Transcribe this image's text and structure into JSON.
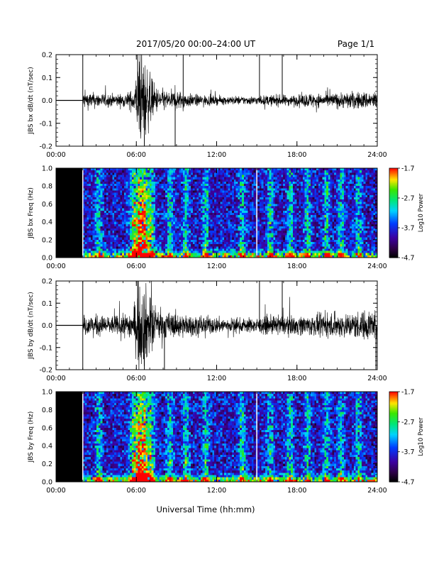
{
  "header": {
    "title": "2017/05/20  00:00–24:00 UT",
    "page": "Page 1/1"
  },
  "xlabel": "Universal Time (hh:mm)",
  "chart_data": [
    {
      "type": "line",
      "ylabel": "JBS bx dB/dt (nT/sec)",
      "xlim": [
        0,
        24
      ],
      "ylim": [
        -0.2,
        0.2
      ],
      "yticks": [
        "0.2",
        "0.1",
        "0.0",
        "-0.1",
        "-0.2"
      ],
      "xticks": [
        "00:00",
        "06:00",
        "12:00",
        "18:00",
        "24:00"
      ],
      "data_start_hour": 2.0,
      "envelope": {
        "x": [
          0,
          1.9,
          2.0,
          3,
          4,
          5,
          5.8,
          6.2,
          6.6,
          7.0,
          7.5,
          8,
          8.5,
          9,
          10,
          11,
          12,
          13,
          14,
          15,
          16,
          17,
          18,
          19,
          20,
          21,
          22,
          23,
          24
        ],
        "amplitude": [
          0.0,
          0.0,
          0.04,
          0.035,
          0.03,
          0.03,
          0.05,
          0.2,
          0.2,
          0.12,
          0.06,
          0.05,
          0.04,
          0.05,
          0.03,
          0.025,
          0.02,
          0.02,
          0.02,
          0.02,
          0.025,
          0.025,
          0.025,
          0.035,
          0.03,
          0.035,
          0.04,
          0.04,
          0.045
        ]
      },
      "spikes": [
        {
          "x": 2.0,
          "y": -0.2
        },
        {
          "x": 2.0,
          "y": 0.2
        },
        {
          "x": 6.1,
          "y": 0.2
        },
        {
          "x": 6.6,
          "y": -0.2
        },
        {
          "x": 8.9,
          "y": -0.2
        },
        {
          "x": 15.2,
          "y": 0.2
        },
        {
          "x": 16.9,
          "y": 0.2
        },
        {
          "x": 9.5,
          "y": 0.2
        }
      ]
    },
    {
      "type": "heatmap",
      "ylabel": "JBS bx Freq (Hz)",
      "xlim": [
        0,
        24
      ],
      "ylim": [
        0,
        1.0
      ],
      "yticks": [
        "1.0",
        "0.8",
        "0.6",
        "0.4",
        "0.2",
        "0.0"
      ],
      "xticks": [
        "00:00",
        "06:00",
        "12:00",
        "18:00",
        "24:00"
      ],
      "data_start_hour": 2.0,
      "gaps_hours": [
        2.0,
        15.0
      ],
      "colorbar": {
        "label": "Log10 Power",
        "ticks": [
          "-1.7",
          "-2.7",
          "-3.7",
          "-4.7"
        ],
        "range": [
          -4.7,
          -1.7
        ]
      },
      "activity_hours": [
        3.2,
        5.8,
        6.2,
        6.6,
        7.1,
        8.5,
        9.7,
        11.2,
        13.9,
        16.0,
        17.5,
        18.8,
        20.2,
        21.3,
        22.6
      ]
    },
    {
      "type": "line",
      "ylabel": "JBS by dB/dt (nT/sec)",
      "xlim": [
        0,
        24
      ],
      "ylim": [
        -0.2,
        0.2
      ],
      "yticks": [
        "0.2",
        "0.1",
        "0.0",
        "-0.1",
        "-0.2"
      ],
      "xticks": [
        "00:00",
        "06:00",
        "12:00",
        "18:00",
        "24:00"
      ],
      "data_start_hour": 2.0,
      "envelope": {
        "x": [
          0,
          1.9,
          2.0,
          3,
          4,
          5,
          5.8,
          6.2,
          6.6,
          7.0,
          7.5,
          8,
          8.5,
          9,
          10,
          11,
          12,
          13,
          14,
          15,
          16,
          17,
          18,
          19,
          20,
          21,
          22,
          23,
          24
        ],
        "amplitude": [
          0.0,
          0.0,
          0.05,
          0.05,
          0.045,
          0.05,
          0.08,
          0.2,
          0.2,
          0.15,
          0.08,
          0.07,
          0.06,
          0.06,
          0.05,
          0.045,
          0.04,
          0.035,
          0.035,
          0.035,
          0.045,
          0.045,
          0.045,
          0.05,
          0.05,
          0.06,
          0.06,
          0.07,
          0.08
        ]
      },
      "spikes": [
        {
          "x": 2.0,
          "y": -0.2
        },
        {
          "x": 2.0,
          "y": 0.2
        },
        {
          "x": 6.1,
          "y": 0.2
        },
        {
          "x": 6.6,
          "y": -0.2
        },
        {
          "x": 8.1,
          "y": -0.2
        },
        {
          "x": 15.2,
          "y": 0.2
        },
        {
          "x": 16.9,
          "y": 0.2
        },
        {
          "x": 23.9,
          "y": -0.2
        }
      ]
    },
    {
      "type": "heatmap",
      "ylabel": "JBS by Freq (Hz)",
      "xlim": [
        0,
        24
      ],
      "ylim": [
        0,
        1.0
      ],
      "yticks": [
        "1.0",
        "0.8",
        "0.6",
        "0.4",
        "0.2",
        "0.0"
      ],
      "xticks": [
        "00:00",
        "06:00",
        "12:00",
        "18:00",
        "24:00"
      ],
      "data_start_hour": 2.0,
      "gaps_hours": [
        2.0,
        15.0
      ],
      "colorbar": {
        "label": "Log10 Power",
        "ticks": [
          "-1.7",
          "-2.7",
          "-3.7",
          "-4.7"
        ],
        "range": [
          -4.7,
          -1.7
        ]
      },
      "activity_hours": [
        3.2,
        5.8,
        6.2,
        6.6,
        7.1,
        8.5,
        9.7,
        11.2,
        13.9,
        16.0,
        17.5,
        18.8,
        20.2,
        21.3,
        22.6
      ]
    }
  ]
}
